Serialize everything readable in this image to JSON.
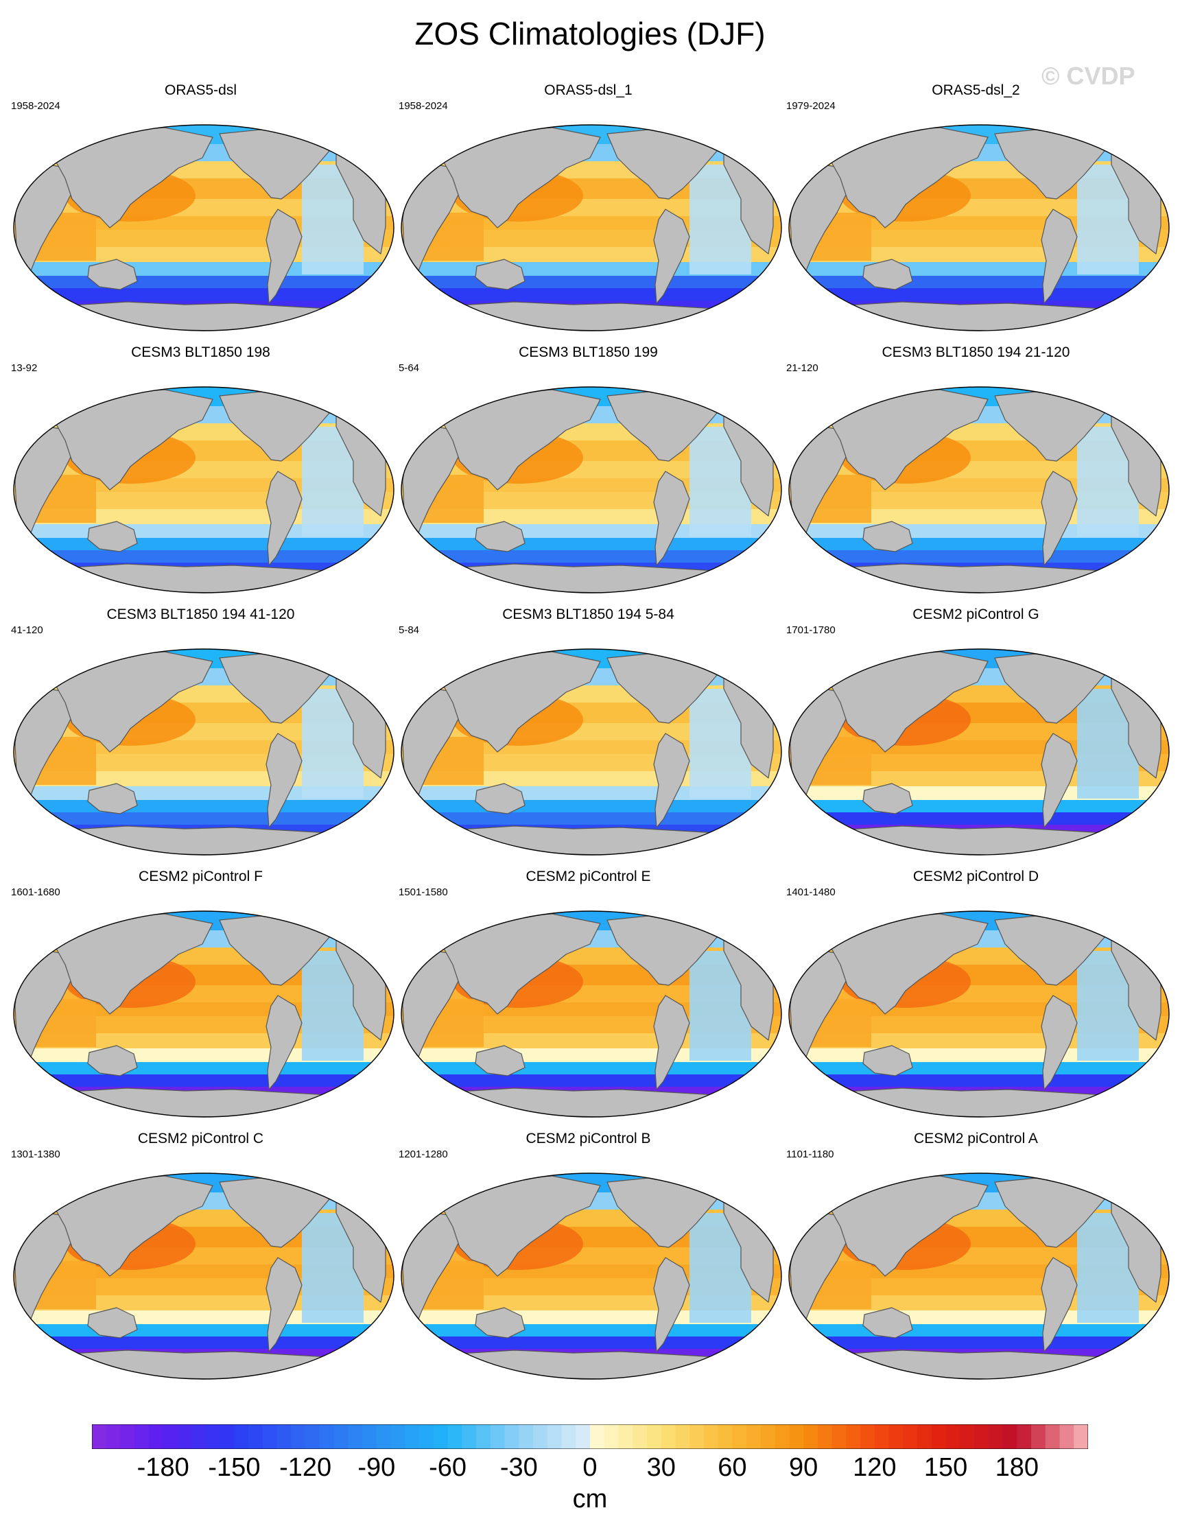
{
  "title": "ZOS Climatologies (DJF)",
  "watermark": "© CVDP",
  "panels": [
    {
      "name": "ORAS5-dsl",
      "years": "1958-2024",
      "style": "obs"
    },
    {
      "name": "ORAS5-dsl_1",
      "years": "1958-2024",
      "style": "obs"
    },
    {
      "name": "ORAS5-dsl_2",
      "years": "1979-2024",
      "style": "obs"
    },
    {
      "name": "CESM3 BLT1850 198",
      "years": "13-92",
      "style": "cesm3"
    },
    {
      "name": "CESM3 BLT1850 199",
      "years": "5-64",
      "style": "cesm3"
    },
    {
      "name": "CESM3 BLT1850 194 21-120",
      "years": "21-120",
      "style": "cesm3"
    },
    {
      "name": "CESM3 BLT1850 194 41-120",
      "years": "41-120",
      "style": "cesm3"
    },
    {
      "name": "CESM3 BLT1850 194 5-84",
      "years": "5-84",
      "style": "cesm3"
    },
    {
      "name": "CESM2 piControl G",
      "years": "1701-1780",
      "style": "cesm2"
    },
    {
      "name": "CESM2 piControl F",
      "years": "1601-1680",
      "style": "cesm2"
    },
    {
      "name": "CESM2 piControl E",
      "years": "1501-1580",
      "style": "cesm2"
    },
    {
      "name": "CESM2 piControl D",
      "years": "1401-1480",
      "style": "cesm2"
    },
    {
      "name": "CESM2 piControl C",
      "years": "1301-1380",
      "style": "cesm2"
    },
    {
      "name": "CESM2 piControl B",
      "years": "1201-1280",
      "style": "cesm2"
    },
    {
      "name": "CESM2 piControl A",
      "years": "1101-1180",
      "style": "cesm2"
    }
  ],
  "colorbar": {
    "units": "cm",
    "min": -210,
    "max": 210,
    "step": 6,
    "tick_values": [
      -180,
      -150,
      -120,
      -90,
      -60,
      -30,
      0,
      30,
      60,
      90,
      120,
      150,
      180
    ],
    "tick_labels": [
      "-180",
      "-150",
      "-120",
      "-90",
      "-60",
      "-30",
      "0",
      "30",
      "60",
      "90",
      "120",
      "150",
      "180"
    ]
  },
  "colors": {
    "land": "#bebebe",
    "coast": "#555555",
    "deep_negative": "#3b1fe0",
    "mid_blue": "#4f9cf5",
    "light_blue": "#bfe0f8",
    "yellow": "#fbe98c",
    "orange": "#f7a12a",
    "red": "#e84410"
  }
}
